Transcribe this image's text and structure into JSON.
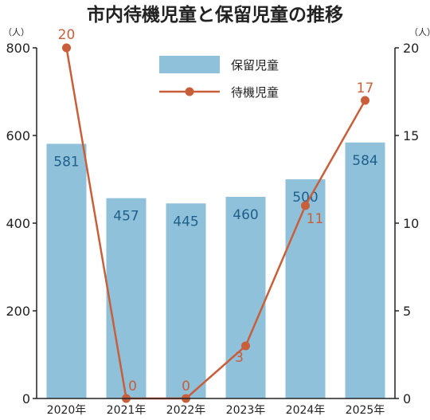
{
  "chart_data": {
    "type": "bar",
    "title": "市内待機児童と保留児童の推移",
    "categories": [
      "2020年",
      "2021年",
      "2022年",
      "2023年",
      "2024年",
      "2025年"
    ],
    "series": [
      {
        "name": "保留児童",
        "type": "bar",
        "axis": "left",
        "color": "#8fc1da",
        "values": [
          581,
          457,
          445,
          460,
          500,
          584
        ]
      },
      {
        "name": "待機児童",
        "type": "line",
        "axis": "right",
        "color": "#c95f3a",
        "values": [
          20,
          0,
          0,
          3,
          11,
          17
        ]
      }
    ],
    "left_axis": {
      "unit": "（人）",
      "ylim": [
        0,
        800
      ],
      "ticks": [
        0,
        200,
        400,
        600,
        800
      ]
    },
    "right_axis": {
      "unit": "（人）",
      "ylim": [
        0,
        20
      ],
      "ticks": [
        0,
        5,
        10,
        15,
        20
      ]
    },
    "legend_position": "top-center",
    "grid": false
  }
}
